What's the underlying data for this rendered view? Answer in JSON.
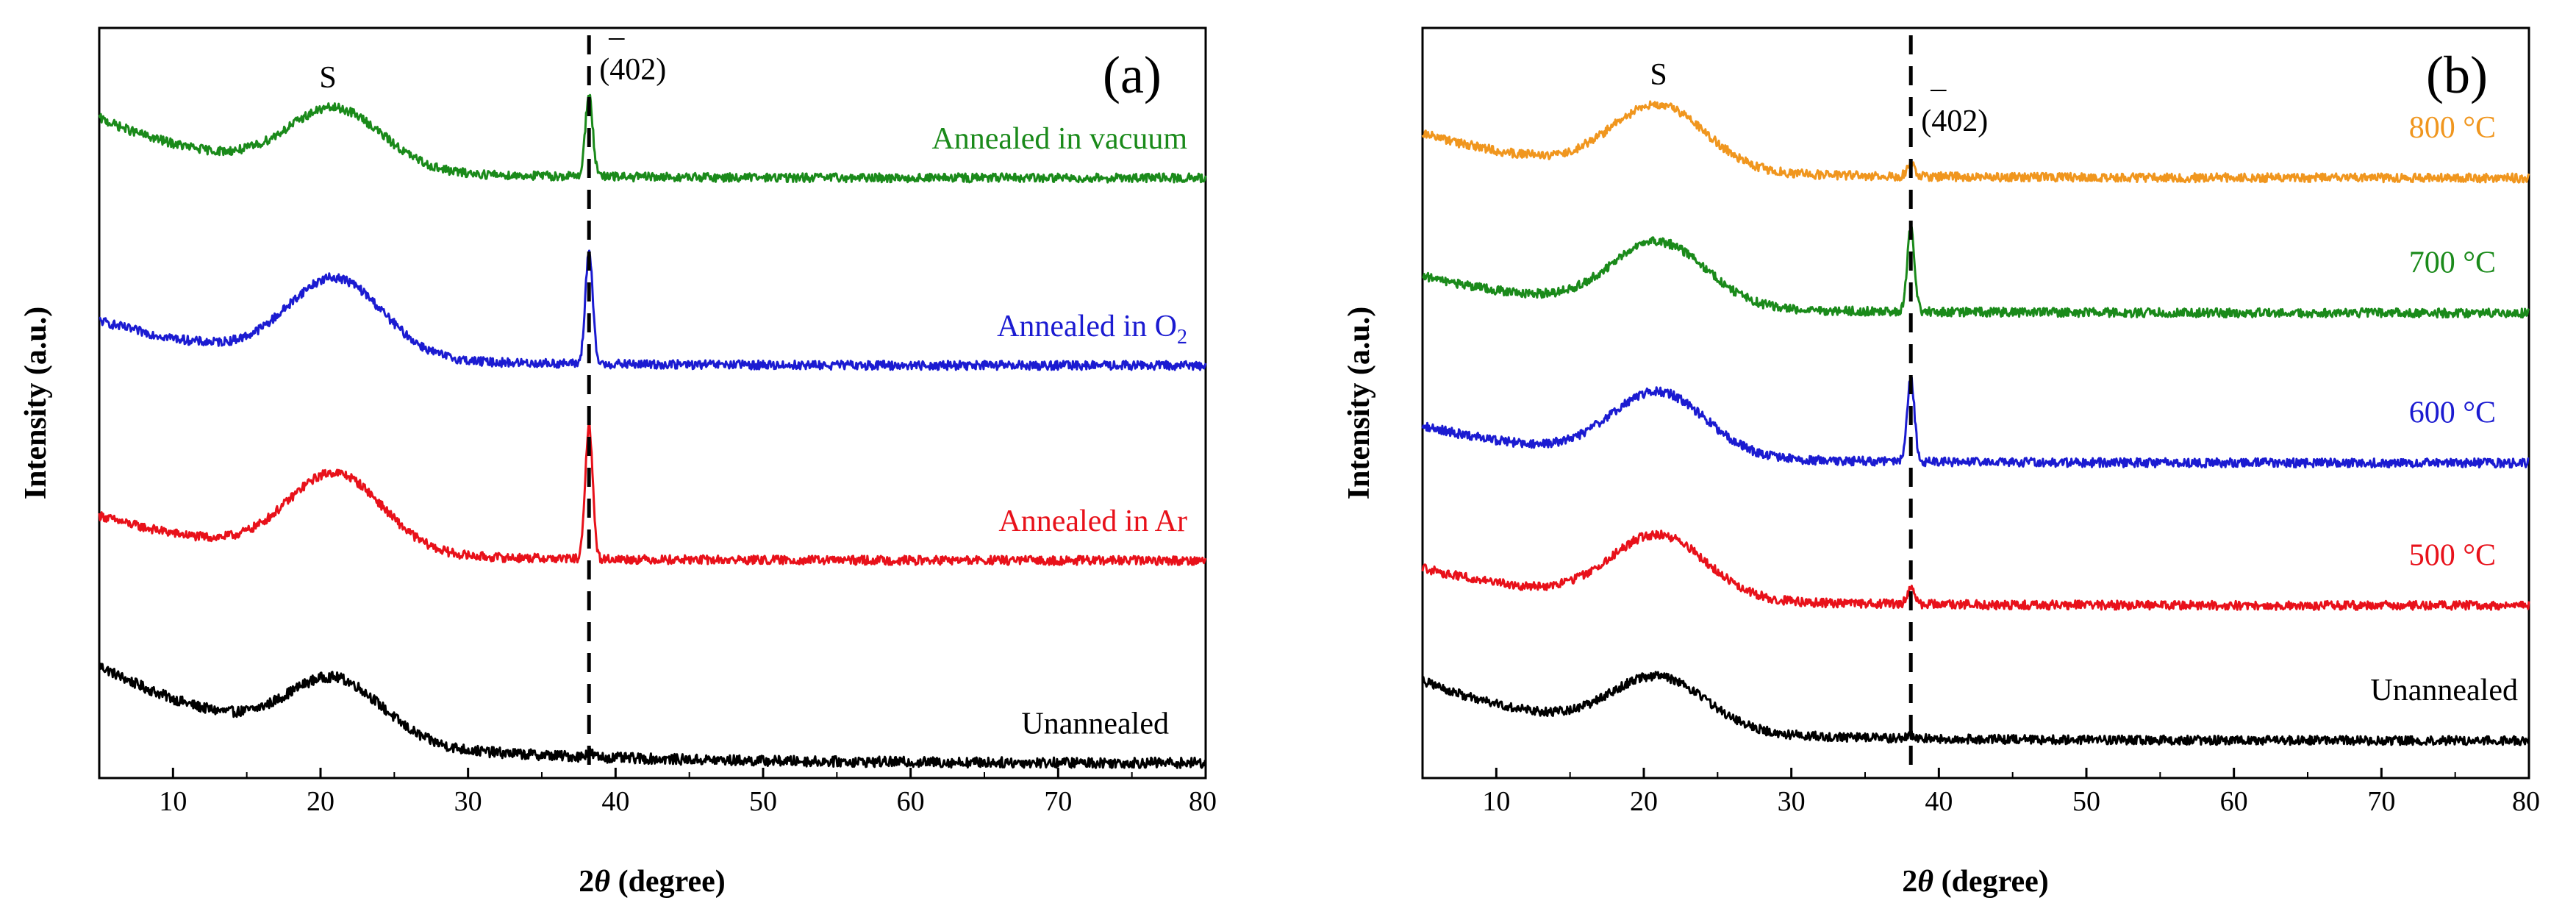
{
  "chart_data": [
    {
      "panel": "a",
      "type": "line",
      "panel_label": "(a)",
      "xlabel": "2θ (degree)",
      "xlabel_prefix": "2",
      "xlabel_theta": "θ",
      "xlabel_suffix": " (degree)",
      "ylabel": "Intensity (a.u.)",
      "xlim": [
        5,
        80
      ],
      "xticks": [
        10,
        20,
        30,
        40,
        50,
        60,
        70,
        80
      ],
      "xtick_labels": [
        "10",
        "20",
        "30",
        "40",
        "50",
        "60",
        "70",
        "80"
      ],
      "ylim": [
        0,
        100
      ],
      "grid": false,
      "reference_line_x": 38.2,
      "annotations": {
        "s_peak": {
          "text": "S",
          "x": 20.5
        },
        "peak_402": {
          "text": "(402)",
          "bar_text": "¯",
          "x": 38.2
        }
      },
      "series": [
        {
          "name": "Unannealed",
          "color": "#000000",
          "baseline": 2.0,
          "decay_amp": 13.0,
          "decay_tau": 12.0,
          "hump_amp": 8.0,
          "hump_center": 21.0,
          "hump_width": 4.5,
          "peak_amp": 0.6,
          "noise": 0.7
        },
        {
          "name": "Annealed in Ar",
          "color": "#e8111a",
          "baseline": 29.0,
          "decay_amp": 6.0,
          "decay_tau": 10.0,
          "hump_amp": 10.5,
          "hump_center": 21.0,
          "hump_width": 4.5,
          "peak_amp": 18.0,
          "noise": 0.6
        },
        {
          "name": "Annealed in O₂",
          "name_main": "Annealed in O",
          "name_sub": "2",
          "color": "#1b1bd1",
          "baseline": 55.0,
          "decay_amp": 6.0,
          "decay_tau": 10.0,
          "hump_amp": 10.5,
          "hump_center": 21.0,
          "hump_width": 4.5,
          "peak_amp": 15.0,
          "noise": 0.6
        },
        {
          "name": "Annealed in vacuum",
          "color": "#1a8a1a",
          "baseline": 80.0,
          "decay_amp": 8.0,
          "decay_tau": 9.0,
          "hump_amp": 8.0,
          "hump_center": 21.0,
          "hump_width": 4.5,
          "peak_amp": 11.0,
          "noise": 0.6
        }
      ]
    },
    {
      "panel": "b",
      "type": "line",
      "panel_label": "(b)",
      "xlabel": "2θ (degree)",
      "xlabel_prefix": "2",
      "xlabel_theta": "θ",
      "xlabel_suffix": " (degree)",
      "ylabel": "Intensity (a.u.)",
      "xlim": [
        5,
        80
      ],
      "xticks": [
        10,
        20,
        30,
        40,
        50,
        60,
        70,
        80
      ],
      "xtick_labels": [
        "10",
        "20",
        "30",
        "40",
        "50",
        "60",
        "70",
        "80"
      ],
      "ylim": [
        0,
        100
      ],
      "grid": false,
      "reference_line_x": 38.1,
      "annotations": {
        "s_peak": {
          "text": "S",
          "x": 21.0
        },
        "peak_402": {
          "text": "(402)",
          "bar_text": "¯",
          "x": 38.1
        }
      },
      "series": [
        {
          "name": "Unannealed",
          "color": "#000000",
          "baseline": 5.0,
          "decay_amp": 8.0,
          "decay_tau": 10.0,
          "hump_amp": 7.0,
          "hump_center": 21.0,
          "hump_width": 4.5,
          "peak_amp": 0.5,
          "noise": 0.6
        },
        {
          "name": "500 °C",
          "color": "#e8111a",
          "baseline": 23.0,
          "decay_amp": 5.0,
          "decay_tau": 10.0,
          "hump_amp": 8.5,
          "hump_center": 21.0,
          "hump_width": 4.5,
          "peak_amp": 2.0,
          "noise": 0.6
        },
        {
          "name": "600 °C",
          "color": "#1b1bd1",
          "baseline": 42.0,
          "decay_amp": 5.0,
          "decay_tau": 10.0,
          "hump_amp": 8.5,
          "hump_center": 21.0,
          "hump_width": 4.5,
          "peak_amp": 11.0,
          "noise": 0.6
        },
        {
          "name": "700 °C",
          "color": "#1a8a1a",
          "baseline": 62.0,
          "decay_amp": 5.0,
          "decay_tau": 10.0,
          "hump_amp": 8.5,
          "hump_center": 21.0,
          "hump_width": 4.5,
          "peak_amp": 11.0,
          "noise": 0.6
        },
        {
          "name": "800 °C",
          "color": "#f0961e",
          "baseline": 80.0,
          "decay_amp": 6.0,
          "decay_tau": 10.0,
          "hump_amp": 8.5,
          "hump_center": 21.0,
          "hump_width": 4.5,
          "peak_amp": 2.0,
          "noise": 0.6
        }
      ]
    }
  ]
}
